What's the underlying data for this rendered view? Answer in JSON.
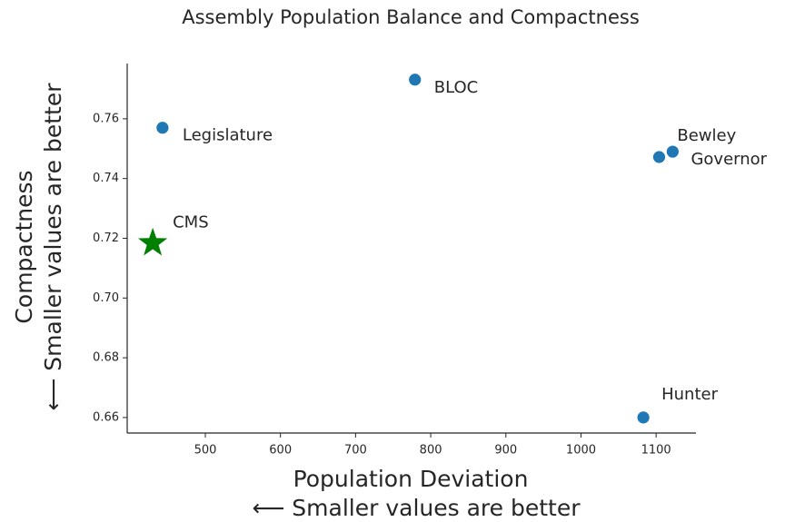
{
  "chart_data": {
    "type": "scatter",
    "title": "Assembly Population Balance and Compactness",
    "xlabel": [
      "Population Deviation",
      "⟵ Smaller values are better"
    ],
    "ylabel": [
      "Compactness",
      "⟵ Smaller values are better"
    ],
    "xlim": [
      396,
      1153
    ],
    "xticks": [
      500,
      600,
      700,
      800,
      900,
      1000,
      1100
    ],
    "ylim": [
      0.6548,
      0.7785
    ],
    "yticks": [
      0.66,
      0.68,
      {
        "value": 0.7,
        "label": "0.70"
      },
      0.72,
      0.74,
      0.76
    ],
    "series": [
      {
        "color": "#1f77b4",
        "marker": "circle",
        "labels": [
          "Legislature",
          "BLOC",
          "Bewley",
          "Governor",
          "Hunter"
        ],
        "x": [
          443,
          779,
          1122,
          1104,
          1083
        ],
        "values": [
          0.757,
          0.7731,
          0.749,
          0.7472,
          0.66
        ]
      },
      {
        "color": "#008000",
        "marker": "star",
        "labels": [
          "CMS"
        ],
        "x": [
          430
        ],
        "values": [
          0.7184
        ]
      }
    ]
  }
}
